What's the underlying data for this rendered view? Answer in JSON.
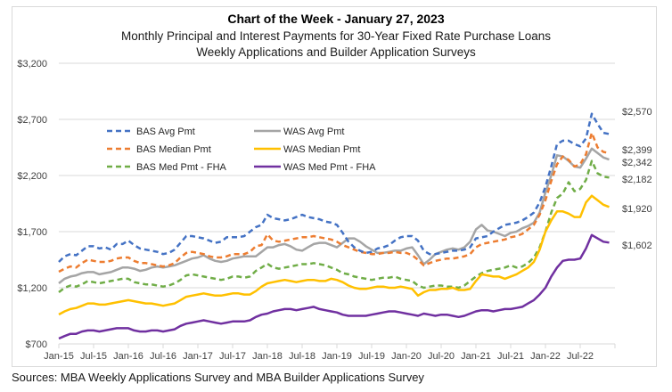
{
  "chart_data": {
    "type": "line",
    "title": "Chart of the Week - January 27, 2023",
    "subtitle": [
      "Monthly Principal and Interest Payments for 30-Year Fixed Rate Purchase Loans",
      "Weekly Applications and Builder Application Surveys"
    ],
    "xlabel": "",
    "ylabel": "",
    "ylim": [
      700,
      3200
    ],
    "yticks": [
      700,
      1200,
      1700,
      2200,
      2700,
      3200
    ],
    "ytick_labels": [
      "$700",
      "$1,200",
      "$1,700",
      "$2,200",
      "$2,700",
      "$3,200"
    ],
    "xtick_labels": [
      "Jan-15",
      "Jul-15",
      "Jan-16",
      "Jul-16",
      "Jan-17",
      "Jul-17",
      "Jan-18",
      "Jul-18",
      "Jan-19",
      "Jul-19",
      "Jan-20",
      "Jul-20",
      "Jan-21",
      "Jul-21",
      "Jan-22",
      "Jul-22"
    ],
    "x_start": "Jan-15",
    "x_frequency": "monthly",
    "grid": true,
    "legend_position": "upper-left",
    "series": [
      {
        "name": "BAS Avg Pmt",
        "color": "#4472c4",
        "dashed": true,
        "end_label": "$2,570",
        "values": [
          1430,
          1480,
          1500,
          1490,
          1530,
          1570,
          1570,
          1550,
          1560,
          1540,
          1590,
          1590,
          1620,
          1580,
          1550,
          1540,
          1530,
          1520,
          1500,
          1510,
          1540,
          1600,
          1660,
          1660,
          1650,
          1640,
          1620,
          1600,
          1610,
          1650,
          1650,
          1650,
          1660,
          1700,
          1740,
          1760,
          1850,
          1820,
          1810,
          1800,
          1810,
          1830,
          1850,
          1830,
          1820,
          1810,
          1790,
          1780,
          1760,
          1690,
          1610,
          1560,
          1530,
          1510,
          1520,
          1550,
          1560,
          1580,
          1620,
          1650,
          1660,
          1660,
          1620,
          1530,
          1500,
          1500,
          1510,
          1520,
          1530,
          1530,
          1540,
          1560,
          1640,
          1650,
          1660,
          1700,
          1730,
          1760,
          1770,
          1780,
          1800,
          1830,
          1870,
          1960,
          2100,
          2280,
          2480,
          2510,
          2510,
          2480,
          2460,
          2530,
          2750,
          2660,
          2580,
          2570
        ]
      },
      {
        "name": "WAS Avg Pmt",
        "color": "#a5a5a5",
        "dashed": false,
        "end_label": "$2,342",
        "values": [
          1240,
          1280,
          1300,
          1310,
          1330,
          1340,
          1340,
          1320,
          1330,
          1340,
          1360,
          1380,
          1380,
          1370,
          1350,
          1360,
          1380,
          1390,
          1380,
          1390,
          1400,
          1420,
          1440,
          1460,
          1470,
          1490,
          1460,
          1440,
          1430,
          1440,
          1460,
          1470,
          1480,
          1480,
          1480,
          1520,
          1560,
          1560,
          1580,
          1590,
          1570,
          1540,
          1530,
          1560,
          1590,
          1600,
          1600,
          1580,
          1560,
          1600,
          1640,
          1640,
          1610,
          1570,
          1540,
          1510,
          1510,
          1520,
          1530,
          1530,
          1550,
          1560,
          1490,
          1410,
          1450,
          1500,
          1520,
          1540,
          1550,
          1540,
          1560,
          1610,
          1720,
          1760,
          1710,
          1700,
          1680,
          1660,
          1690,
          1700,
          1730,
          1750,
          1780,
          1870,
          2050,
          2200,
          2380,
          2370,
          2330,
          2280,
          2270,
          2350,
          2440,
          2400,
          2360,
          2342
        ]
      },
      {
        "name": "BAS Median Pmt",
        "color": "#ed7d31",
        "dashed": true,
        "end_label": "$2,399",
        "values": [
          1343,
          1370,
          1390,
          1380,
          1420,
          1450,
          1440,
          1430,
          1430,
          1440,
          1460,
          1470,
          1470,
          1440,
          1420,
          1420,
          1410,
          1400,
          1390,
          1400,
          1420,
          1470,
          1510,
          1520,
          1510,
          1500,
          1480,
          1470,
          1470,
          1480,
          1500,
          1500,
          1500,
          1520,
          1570,
          1580,
          1676,
          1620,
          1610,
          1620,
          1630,
          1640,
          1650,
          1650,
          1660,
          1650,
          1640,
          1630,
          1610,
          1580,
          1560,
          1540,
          1520,
          1510,
          1500,
          1500,
          1510,
          1510,
          1520,
          1510,
          1510,
          1490,
          1450,
          1400,
          1420,
          1440,
          1450,
          1460,
          1460,
          1470,
          1480,
          1500,
          1560,
          1590,
          1600,
          1610,
          1620,
          1630,
          1650,
          1660,
          1680,
          1720,
          1760,
          1850,
          1980,
          2150,
          2300,
          2370,
          2340,
          2280,
          2300,
          2390,
          2580,
          2450,
          2410,
          2399
        ]
      },
      {
        "name": "WAS Median Pmt",
        "color": "#ffc000",
        "dashed": false,
        "end_label": "$1,920",
        "values": [
          962,
          990,
          1010,
          1020,
          1040,
          1060,
          1060,
          1050,
          1050,
          1060,
          1070,
          1080,
          1090,
          1080,
          1070,
          1060,
          1060,
          1050,
          1040,
          1050,
          1060,
          1090,
          1120,
          1130,
          1140,
          1150,
          1140,
          1130,
          1130,
          1140,
          1150,
          1150,
          1140,
          1140,
          1170,
          1210,
          1240,
          1250,
          1260,
          1270,
          1260,
          1250,
          1260,
          1270,
          1270,
          1260,
          1260,
          1280,
          1270,
          1250,
          1220,
          1200,
          1190,
          1190,
          1200,
          1210,
          1210,
          1200,
          1200,
          1210,
          1200,
          1190,
          1130,
          1160,
          1180,
          1180,
          1190,
          1190,
          1200,
          1180,
          1180,
          1190,
          1260,
          1320,
          1310,
          1300,
          1300,
          1280,
          1300,
          1320,
          1350,
          1380,
          1430,
          1540,
          1700,
          1800,
          1880,
          1880,
          1860,
          1830,
          1830,
          1960,
          2020,
          1980,
          1940,
          1920
        ]
      },
      {
        "name": "BAS Med Pmt - FHA",
        "color": "#70ad47",
        "dashed": true,
        "end_label": "$2,182",
        "values": [
          1160,
          1200,
          1220,
          1210,
          1230,
          1260,
          1250,
          1240,
          1250,
          1260,
          1270,
          1280,
          1280,
          1250,
          1240,
          1230,
          1230,
          1220,
          1210,
          1220,
          1240,
          1270,
          1310,
          1320,
          1310,
          1300,
          1290,
          1280,
          1270,
          1280,
          1300,
          1300,
          1290,
          1300,
          1350,
          1380,
          1414,
          1380,
          1370,
          1380,
          1390,
          1400,
          1410,
          1410,
          1420,
          1410,
          1400,
          1380,
          1360,
          1330,
          1320,
          1300,
          1290,
          1280,
          1270,
          1280,
          1290,
          1290,
          1300,
          1280,
          1270,
          1260,
          1220,
          1200,
          1210,
          1220,
          1220,
          1210,
          1210,
          1200,
          1220,
          1260,
          1300,
          1330,
          1350,
          1360,
          1370,
          1380,
          1400,
          1380,
          1390,
          1420,
          1470,
          1560,
          1700,
          1870,
          2000,
          2040,
          2140,
          2060,
          2080,
          2160,
          2330,
          2220,
          2190,
          2182
        ]
      },
      {
        "name": "WAS Med Pmt - FHA",
        "color": "#7030a0",
        "dashed": false,
        "end_label": "$1,602",
        "values": [
          748,
          770,
          790,
          790,
          810,
          820,
          820,
          810,
          820,
          830,
          840,
          840,
          840,
          820,
          810,
          810,
          820,
          820,
          810,
          820,
          830,
          860,
          880,
          890,
          900,
          910,
          900,
          890,
          880,
          890,
          900,
          900,
          900,
          910,
          940,
          960,
          970,
          990,
          1000,
          1010,
          1010,
          1000,
          1010,
          1020,
          1030,
          1010,
          1000,
          990,
          980,
          960,
          950,
          950,
          950,
          950,
          960,
          970,
          980,
          990,
          990,
          980,
          970,
          960,
          950,
          970,
          960,
          950,
          960,
          960,
          950,
          940,
          950,
          970,
          990,
          1000,
          1000,
          990,
          1000,
          1010,
          1010,
          1020,
          1030,
          1060,
          1090,
          1140,
          1200,
          1300,
          1380,
          1440,
          1450,
          1450,
          1460,
          1550,
          1670,
          1640,
          1610,
          1602
        ]
      }
    ]
  },
  "sources": "Sources: MBA Weekly Applications Survey and MBA Builder Applications Survey"
}
